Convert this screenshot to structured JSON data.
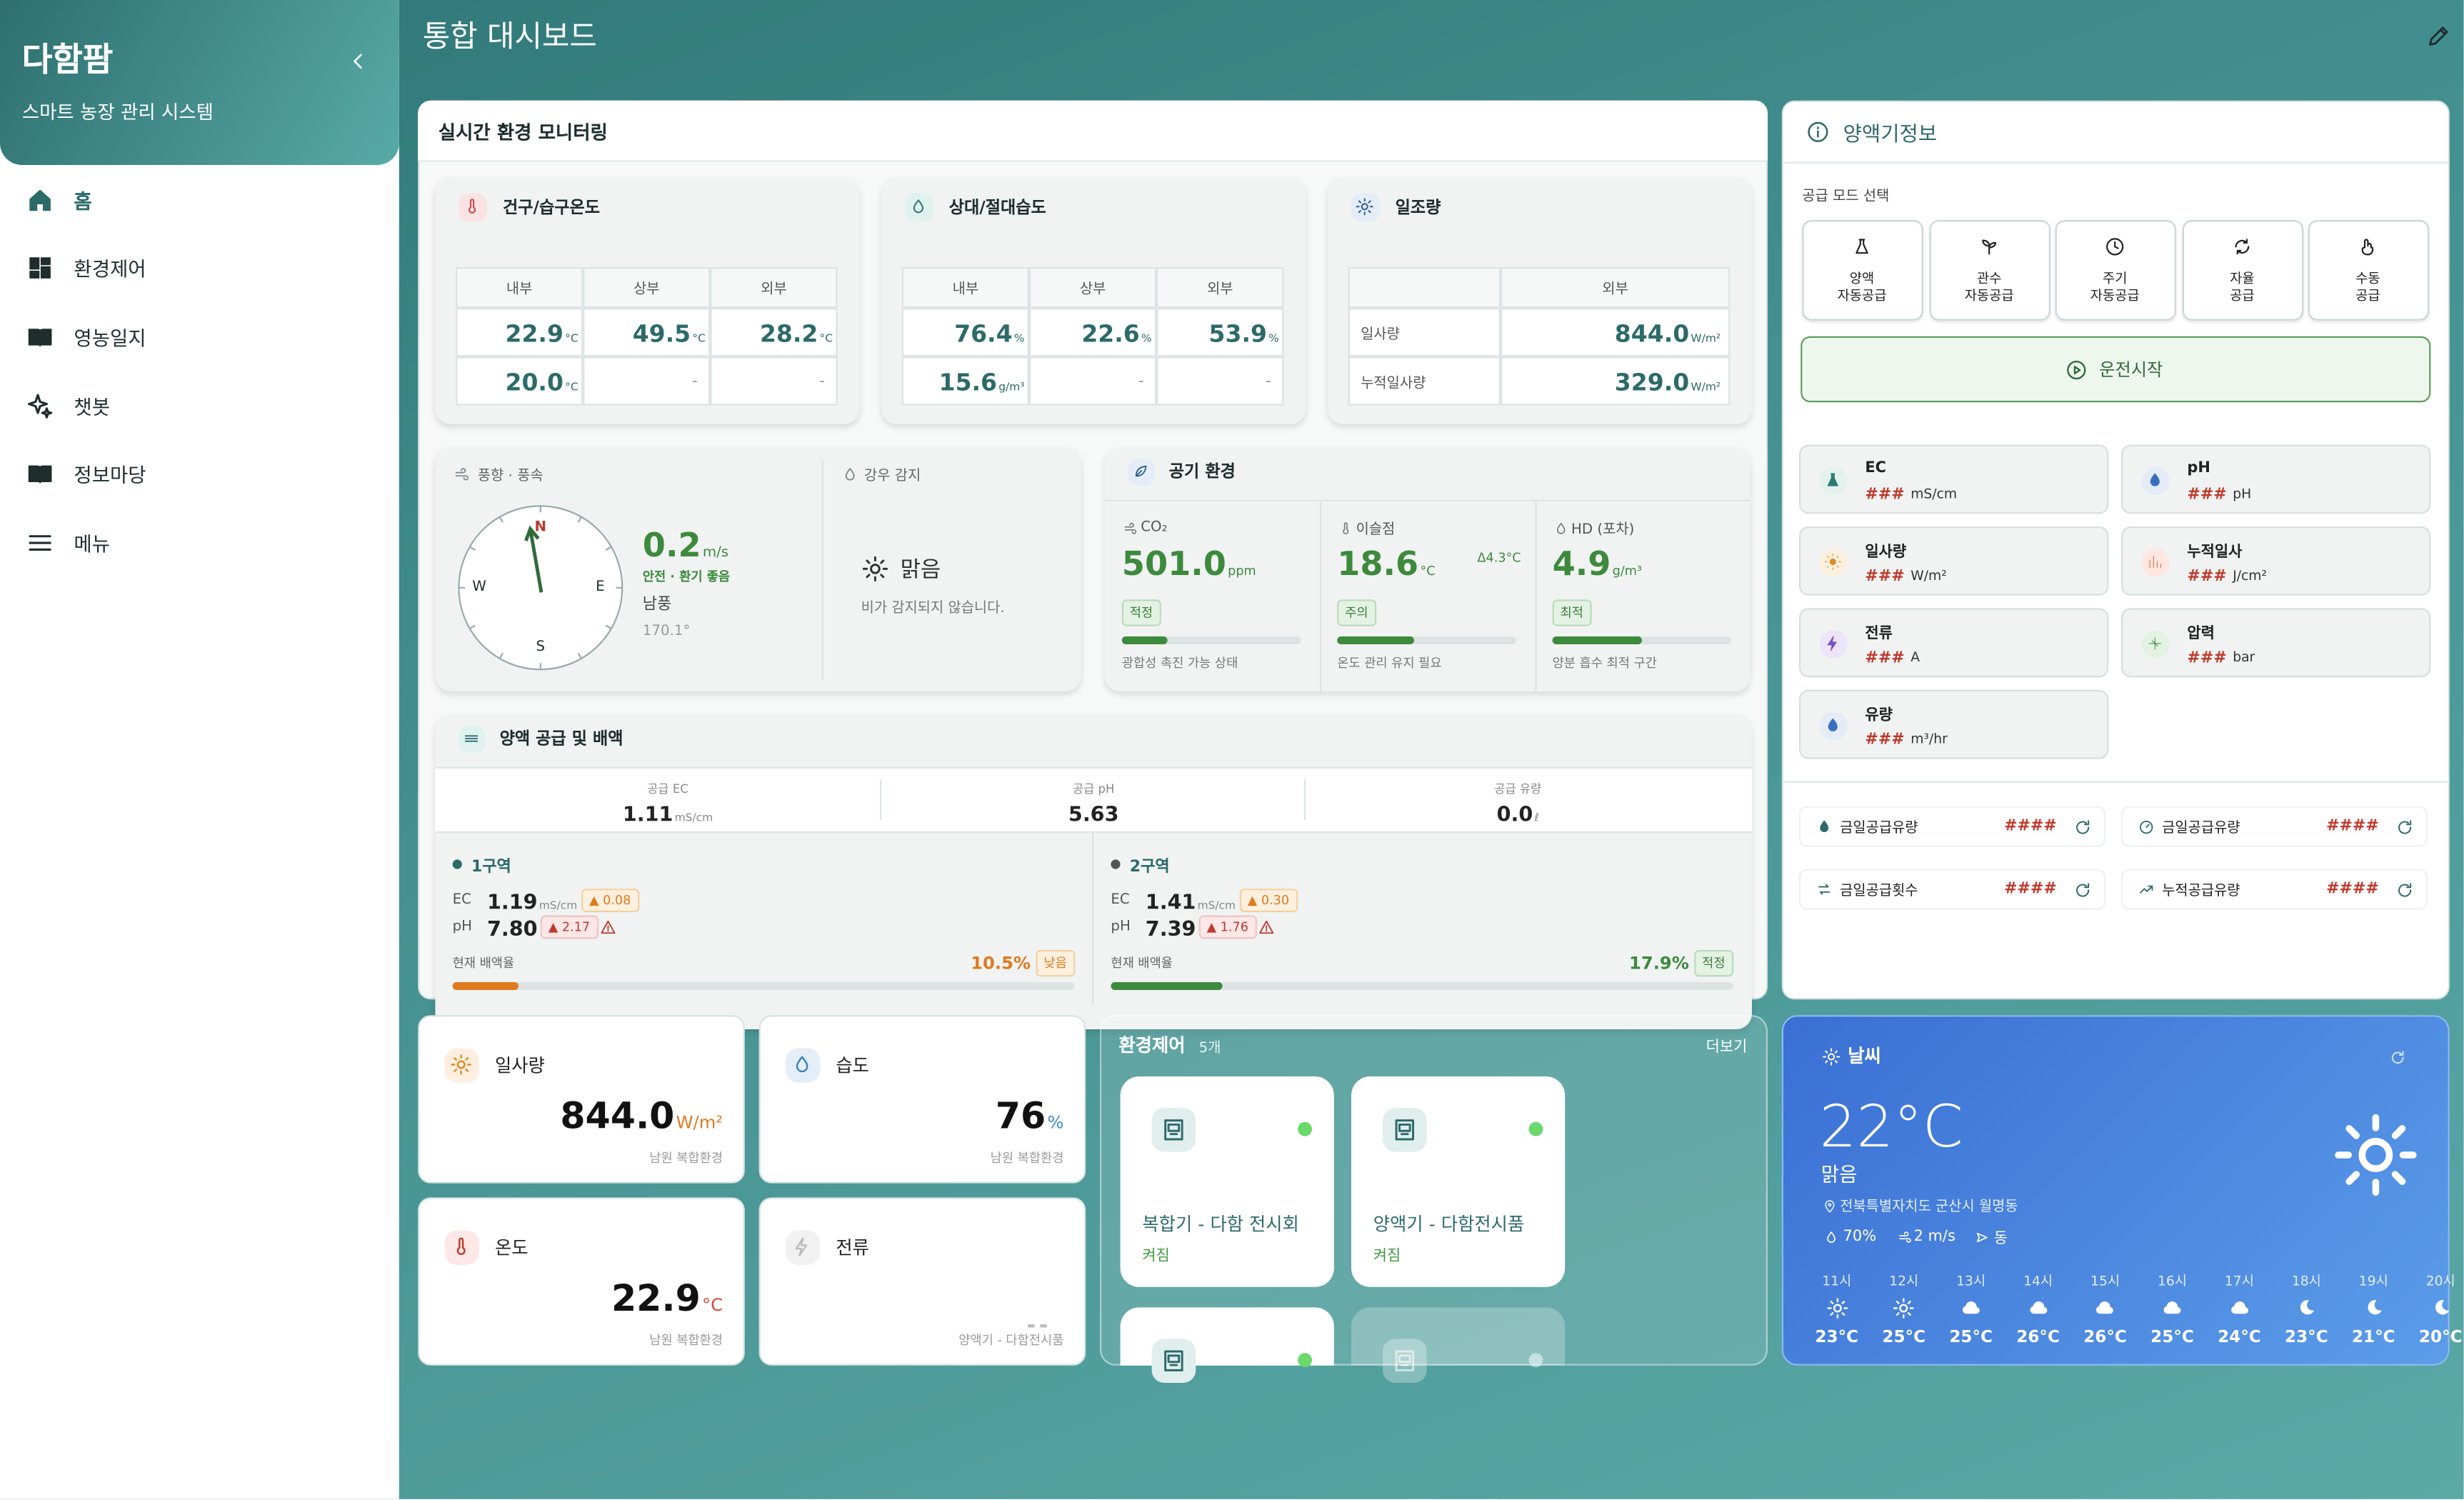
{
  "sidebar": {
    "title": "다함팜",
    "subtitle": "스마트 농장 관리 시스템",
    "nav": [
      "홈",
      "환경제어",
      "영농일지",
      "챗봇",
      "정보마당",
      "메뉴"
    ]
  },
  "header": {
    "title": "통합 대시보드"
  },
  "monitoring": {
    "title": "실시간 환경 모니터링",
    "temperature": {
      "title": "건구/습구온도",
      "columns": [
        "내부",
        "상부",
        "외부"
      ],
      "rows": [
        [
          {
            "value": "22.9",
            "unit": "°C"
          },
          {
            "value": "49.5",
            "unit": "°C"
          },
          {
            "value": "28.2",
            "unit": "°C"
          }
        ],
        [
          {
            "value": "20.0",
            "unit": "°C"
          },
          {
            "value": "-"
          },
          {
            "value": "-"
          }
        ]
      ]
    },
    "humidity": {
      "title": "상대/절대습도",
      "columns": [
        "내부",
        "상부",
        "외부"
      ],
      "rows": [
        [
          {
            "value": "76.4",
            "unit": "%"
          },
          {
            "value": "22.6",
            "unit": "%"
          },
          {
            "value": "53.9",
            "unit": "%"
          }
        ],
        [
          {
            "value": "15.6",
            "unit": "g/m³"
          },
          {
            "value": "-"
          },
          {
            "value": "-"
          }
        ]
      ]
    },
    "sunlight": {
      "title": "일조량",
      "column": "외부",
      "rows": [
        {
          "label": "일사량",
          "value": "844.0",
          "unit": "W/m²"
        },
        {
          "label": "누적일사량",
          "value": "329.0",
          "unit": "W/m²"
        }
      ]
    },
    "wind": {
      "title": "풍향 · 풍속",
      "compass": {
        "n": "N",
        "e": "E",
        "s": "S",
        "w": "W"
      },
      "value": "0.2",
      "unit": "m/s",
      "status": "안전 · 환기 좋음",
      "direction": "남풍",
      "degrees": "170.1°"
    },
    "rain": {
      "title": "강우 감지",
      "state": "맑음",
      "message": "비가 감지되지 않습니다."
    },
    "air": {
      "title": "공기 환경",
      "items": [
        {
          "label": "CO₂",
          "value": "501.0",
          "unit": "ppm",
          "badge": "적정",
          "note": "광합성 촉진 가능 상태"
        },
        {
          "label": "이슬점",
          "value": "18.6",
          "unit": "°C",
          "delta": "Δ4.3°C",
          "badge": "주의",
          "note": "온도 관리 유지 필요"
        },
        {
          "label": "HD (포차)",
          "value": "4.9",
          "unit": "g/m³",
          "badge": "최적",
          "note": "양분 흡수 최적 구간"
        }
      ]
    },
    "nutrient": {
      "title": "양액 공급 및 배액",
      "supply": [
        {
          "label": "공급 EC",
          "value": "1.11",
          "unit": "mS/cm"
        },
        {
          "label": "공급 pH",
          "value": "5.63"
        },
        {
          "label": "공급 유량",
          "value": "0.0",
          "unit": "ℓ"
        }
      ],
      "zones": [
        {
          "name": "1구역",
          "ec": {
            "label": "EC",
            "value": "1.19",
            "unit": "mS/cm",
            "delta": "▲ 0.08"
          },
          "ph": {
            "label": "pH",
            "value": "7.80",
            "delta": "▲ 2.17"
          },
          "drain_label": "현재 배액율",
          "drain": "10.5%",
          "status": "낮음"
        },
        {
          "name": "2구역",
          "ec": {
            "label": "EC",
            "value": "1.41",
            "unit": "mS/cm",
            "delta": "▲ 0.30"
          },
          "ph": {
            "label": "pH",
            "value": "7.39",
            "delta": "▲ 1.76"
          },
          "drain_label": "현재 배액율",
          "drain": "17.9%",
          "status": "적정"
        }
      ]
    }
  },
  "doser": {
    "title": "양액기정보",
    "mode_label": "공급 모드 선택",
    "modes": [
      [
        "양액",
        "자동공급"
      ],
      [
        "관수",
        "자동공급"
      ],
      [
        "주기",
        "자동공급"
      ],
      [
        "자율",
        "공급"
      ],
      [
        "수동",
        "공급"
      ]
    ],
    "start": "운전시작",
    "sensors": [
      {
        "name": "EC",
        "value": "###",
        "unit": "mS/cm"
      },
      {
        "name": "pH",
        "value": "###",
        "unit": "pH"
      },
      {
        "name": "일사량",
        "value": "###",
        "unit": "W/m²"
      },
      {
        "name": "누적일사",
        "value": "###",
        "unit": "J/cm²"
      },
      {
        "name": "전류",
        "value": "###",
        "unit": "A"
      },
      {
        "name": "압력",
        "value": "###",
        "unit": "bar"
      },
      {
        "name": "유량",
        "value": "###",
        "unit": "m³/hr"
      }
    ],
    "stats": [
      {
        "label": "금일공급유량",
        "value": "####"
      },
      {
        "label": "금일공급유량",
        "value": "####"
      },
      {
        "label": "금일공급횟수",
        "value": "####"
      },
      {
        "label": "누적공급유량",
        "value": "####"
      }
    ]
  },
  "tiles": [
    {
      "title": "일사량",
      "value": "844.0",
      "unit": "W/m²",
      "source": "남원 복합환경"
    },
    {
      "title": "습도",
      "value": "76",
      "unit": "%",
      "source": "남원 복합환경"
    },
    {
      "title": "온도",
      "value": "22.9",
      "unit": "°C",
      "source": "남원 복합환경"
    },
    {
      "title": "전류",
      "value": "--",
      "source": "양액기 - 다함전시품"
    }
  ],
  "control": {
    "title": "환경제어",
    "count": "5개",
    "more": "더보기",
    "devices": [
      {
        "name": "복합기 - 다함 전시회",
        "status": "켜짐"
      },
      {
        "name": "양액기 - 다함전시품",
        "status": "켜짐"
      }
    ]
  },
  "weather": {
    "title": "날씨",
    "temp": "22°C",
    "condition": "맑음",
    "location": "전북특별자치도 군산시 월명동",
    "humidity": "70%",
    "wind": "2 m/s",
    "wind_dir": "동",
    "hourly": [
      {
        "time": "11시",
        "temp": "23°C",
        "icon": "sun"
      },
      {
        "time": "12시",
        "temp": "25°C",
        "icon": "sun"
      },
      {
        "time": "13시",
        "temp": "25°C",
        "icon": "cloud"
      },
      {
        "time": "14시",
        "temp": "26°C",
        "icon": "cloud"
      },
      {
        "time": "15시",
        "temp": "26°C",
        "icon": "cloud"
      },
      {
        "time": "16시",
        "temp": "25°C",
        "icon": "cloud"
      },
      {
        "time": "17시",
        "temp": "24°C",
        "icon": "cloud"
      },
      {
        "time": "18시",
        "temp": "23°C",
        "icon": "moon"
      },
      {
        "time": "19시",
        "temp": "21°C",
        "icon": "moon"
      },
      {
        "time": "20시",
        "temp": "20°C",
        "icon": "moon"
      }
    ]
  }
}
